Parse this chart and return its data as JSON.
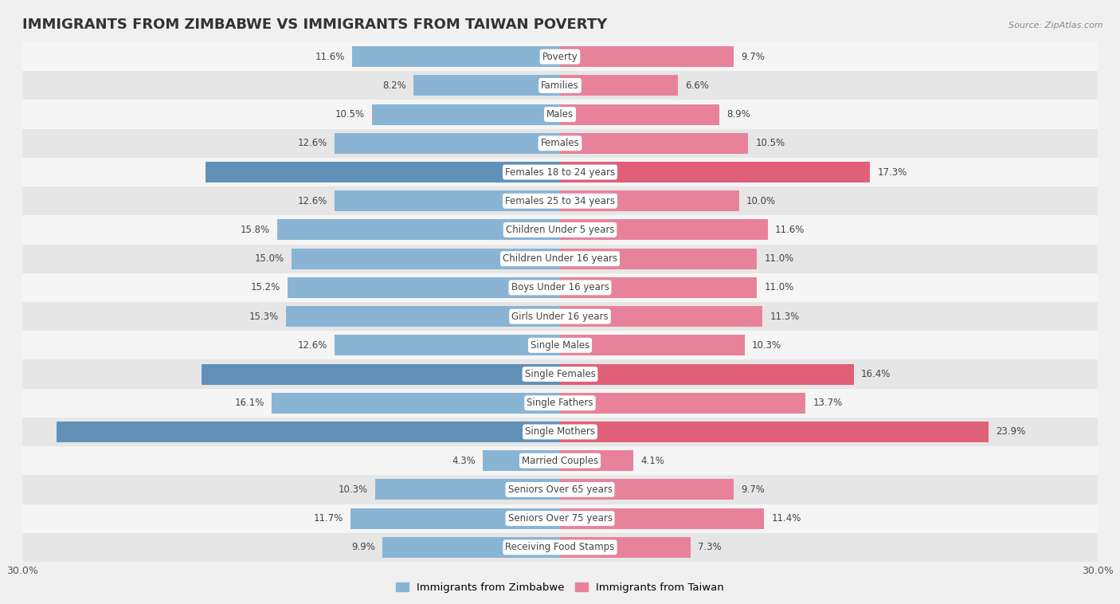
{
  "title": "IMMIGRANTS FROM ZIMBABWE VS IMMIGRANTS FROM TAIWAN POVERTY",
  "source": "Source: ZipAtlas.com",
  "categories": [
    "Poverty",
    "Families",
    "Males",
    "Females",
    "Females 18 to 24 years",
    "Females 25 to 34 years",
    "Children Under 5 years",
    "Children Under 16 years",
    "Boys Under 16 years",
    "Girls Under 16 years",
    "Single Males",
    "Single Females",
    "Single Fathers",
    "Single Mothers",
    "Married Couples",
    "Seniors Over 65 years",
    "Seniors Over 75 years",
    "Receiving Food Stamps"
  ],
  "zimbabwe_values": [
    11.6,
    8.2,
    10.5,
    12.6,
    19.8,
    12.6,
    15.8,
    15.0,
    15.2,
    15.3,
    12.6,
    20.0,
    16.1,
    28.1,
    4.3,
    10.3,
    11.7,
    9.9
  ],
  "taiwan_values": [
    9.7,
    6.6,
    8.9,
    10.5,
    17.3,
    10.0,
    11.6,
    11.0,
    11.0,
    11.3,
    10.3,
    16.4,
    13.7,
    23.9,
    4.1,
    9.7,
    11.4,
    7.3
  ],
  "zimbabwe_color": "#8ab4d4",
  "taiwan_color": "#e8829a",
  "zimbabwe_highlight_color": "#6090b8",
  "taiwan_highlight_color": "#e0607a",
  "zimbabwe_label": "Immigrants from Zimbabwe",
  "taiwan_label": "Immigrants from Taiwan",
  "axis_limit": 30.0,
  "background_color": "#f0f0f0",
  "row_bg_light": "#f5f5f5",
  "row_bg_dark": "#e6e6e6",
  "title_fontsize": 13,
  "label_fontsize": 8.5,
  "value_fontsize": 8.5,
  "highlight_rows": [
    4,
    11,
    13
  ],
  "value_label_color_normal": "#444444",
  "value_label_color_highlight": "#ffffff"
}
